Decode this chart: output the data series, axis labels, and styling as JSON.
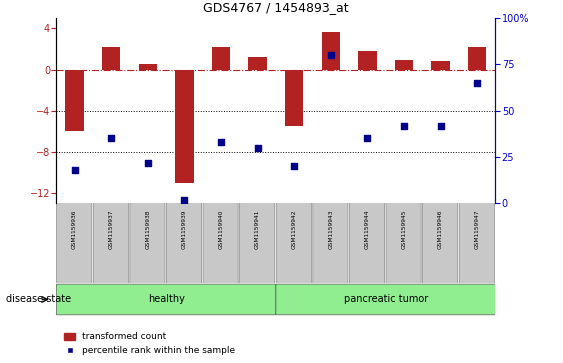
{
  "title": "GDS4767 / 1454893_at",
  "samples": [
    "GSM1159936",
    "GSM1159937",
    "GSM1159938",
    "GSM1159939",
    "GSM1159940",
    "GSM1159941",
    "GSM1159942",
    "GSM1159943",
    "GSM1159944",
    "GSM1159945",
    "GSM1159946",
    "GSM1159947"
  ],
  "transformed_count": [
    -6.0,
    2.2,
    0.5,
    -11.0,
    2.2,
    1.2,
    -5.5,
    3.7,
    1.8,
    0.9,
    0.8,
    2.2
  ],
  "percentile_rank": [
    18,
    35,
    22,
    2,
    33,
    30,
    20,
    80,
    35,
    42,
    42,
    65
  ],
  "bar_color": "#b22222",
  "dot_color": "#00008b",
  "ylim_left": [
    -13,
    5
  ],
  "ylim_right": [
    0,
    100
  ],
  "yticks_left": [
    4,
    0,
    -4,
    -8,
    -12
  ],
  "yticks_right": [
    0,
    25,
    50,
    75,
    100
  ],
  "healthy_label": "healthy",
  "tumor_label": "pancreatic tumor",
  "group_color": "#90ee90",
  "label_box_color": "#c8c8c8",
  "disease_state_label": "disease state",
  "legend_bar_label": "transformed count",
  "legend_dot_label": "percentile rank within the sample",
  "hline_y": 0,
  "dotted_lines": [
    -4,
    -8
  ],
  "n_healthy": 6,
  "n_tumor": 6
}
